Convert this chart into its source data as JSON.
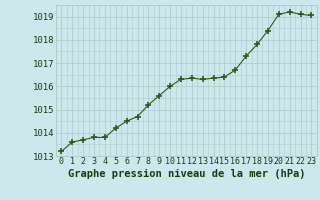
{
  "x": [
    0,
    1,
    2,
    3,
    4,
    5,
    6,
    7,
    8,
    9,
    10,
    11,
    12,
    13,
    14,
    15,
    16,
    17,
    18,
    19,
    20,
    21,
    22,
    23
  ],
  "y": [
    1013.2,
    1013.6,
    1013.7,
    1013.8,
    1013.8,
    1014.2,
    1014.5,
    1014.7,
    1015.2,
    1015.6,
    1016.0,
    1016.3,
    1016.35,
    1016.3,
    1016.35,
    1016.4,
    1016.7,
    1017.3,
    1017.8,
    1018.4,
    1019.1,
    1019.2,
    1019.1,
    1019.05
  ],
  "ylim": [
    1013.0,
    1019.5
  ],
  "yticks": [
    1013,
    1014,
    1015,
    1016,
    1017,
    1018,
    1019
  ],
  "xticks": [
    0,
    1,
    2,
    3,
    4,
    5,
    6,
    7,
    8,
    9,
    10,
    11,
    12,
    13,
    14,
    15,
    16,
    17,
    18,
    19,
    20,
    21,
    22,
    23
  ],
  "line_color": "#2d5a1b",
  "marker_color": "#2d5a1b",
  "bg_color": "#cde8ed",
  "grid_color": "#b0cccc",
  "xlabel": "Graphe pression niveau de la mer (hPa)",
  "xlabel_color": "#1a3a0a",
  "xlabel_fontsize": 7.5,
  "tick_fontsize": 6.0,
  "ytick_fontsize": 6.5
}
